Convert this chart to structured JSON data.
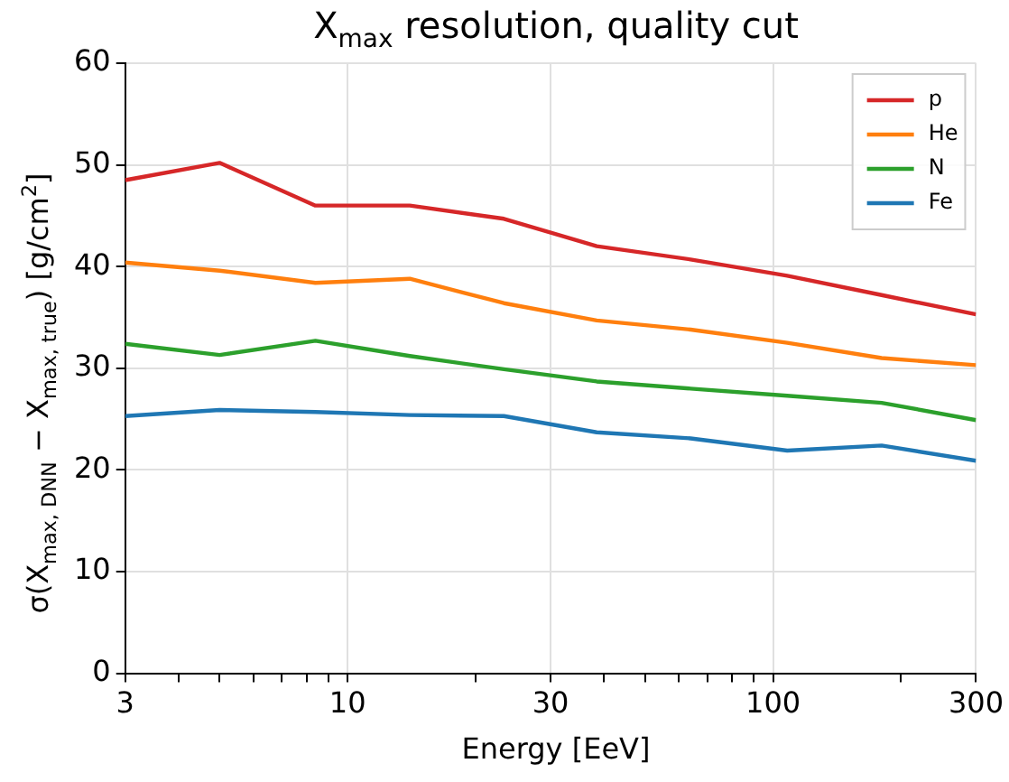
{
  "chart_data": {
    "type": "line",
    "title": "X$_{max}$ resolution, quality cut",
    "xlabel": "Energy [EeV]",
    "ylabel": "σ(X$_{max, DNN}$ − X$_{max, true}$) [g/cm$^{2}$]",
    "x": [
      3,
      5,
      8.4,
      14,
      23.3,
      38.5,
      64,
      108,
      180,
      300
    ],
    "series": [
      {
        "name": "p",
        "color": "#d62728",
        "values": [
          48.5,
          50.2,
          46.0,
          46.0,
          44.7,
          42.0,
          40.7,
          39.1,
          37.2,
          35.3
        ]
      },
      {
        "name": "He",
        "color": "#ff7f0e",
        "values": [
          40.4,
          39.6,
          38.4,
          38.8,
          36.4,
          34.7,
          33.8,
          32.5,
          31.0,
          30.3
        ]
      },
      {
        "name": "N",
        "color": "#2ca02c",
        "values": [
          32.4,
          31.3,
          32.7,
          31.2,
          29.9,
          28.7,
          28.0,
          27.3,
          26.6,
          24.9
        ]
      },
      {
        "name": "Fe",
        "color": "#1f77b4",
        "values": [
          25.3,
          25.9,
          25.7,
          25.4,
          25.3,
          23.7,
          23.1,
          21.9,
          22.4,
          20.9
        ]
      }
    ],
    "log": "x",
    "xlim": [
      3,
      300
    ],
    "xticks": [
      3,
      {
        "value": 4,
        "label": null
      },
      {
        "value": 5,
        "label": null
      },
      {
        "value": 6,
        "label": null
      },
      {
        "value": 7,
        "label": null
      },
      {
        "value": 8,
        "label": null
      },
      {
        "value": 9,
        "label": null
      },
      10,
      {
        "value": 20,
        "label": null
      },
      30,
      {
        "value": 40,
        "label": null
      },
      {
        "value": 50,
        "label": null
      },
      {
        "value": 60,
        "label": null
      },
      {
        "value": 70,
        "label": null
      },
      {
        "value": 80,
        "label": null
      },
      {
        "value": 90,
        "label": null
      },
      100,
      {
        "value": 200,
        "label": null
      },
      300
    ],
    "ylim": [
      0,
      60
    ],
    "yticks": [
      0,
      10,
      20,
      30,
      40,
      50,
      60
    ],
    "grid": true,
    "legend": "top right",
    "marker": "none",
    "line_style": "solid"
  }
}
